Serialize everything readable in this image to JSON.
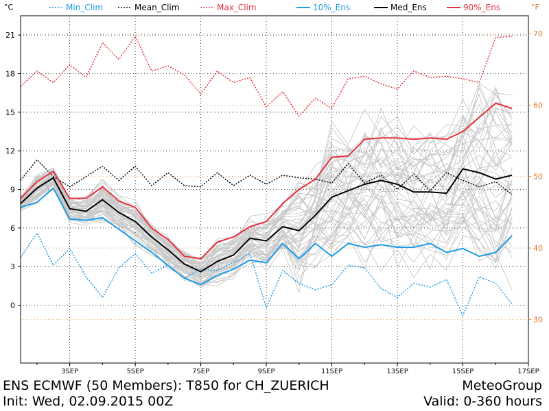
{
  "chart_data": {
    "type": "line",
    "title": "ENS ECMWF (50 Members): T850 for CH_ZUERICH",
    "ylabel_left": "°C",
    "ylabel_right": "°F",
    "ylim": [
      -4.5,
      22.5
    ],
    "y_ticks_left": [
      0,
      3,
      6,
      9,
      12,
      15,
      18,
      21
    ],
    "y_ticks_right_f": [
      30,
      40,
      50,
      60,
      70
    ],
    "xlim": [
      0,
      360
    ],
    "x_tick_labels": [
      "3SEP",
      "5SEP",
      "7SEP",
      "9SEP",
      "11SEP",
      "13SEP",
      "15SEP",
      "17SEP"
    ],
    "x_tick_hours": [
      36,
      84,
      132,
      180,
      228,
      276,
      324,
      372
    ],
    "legend": [
      {
        "key": "min_clim",
        "label": "Min_Clim",
        "color": "#1e9be6",
        "dash": "dotted"
      },
      {
        "key": "mean_clim",
        "label": "Mean_Clim",
        "color": "#000000",
        "dash": "dotted"
      },
      {
        "key": "max_clim",
        "label": "Max_Clim",
        "color": "#e6323c",
        "dash": "dotted"
      },
      {
        "key": "p10",
        "label": "10%_Ens",
        "color": "#1e9be6",
        "dash": "solid"
      },
      {
        "key": "median",
        "label": "Med_Ens",
        "color": "#000000",
        "dash": "solid"
      },
      {
        "key": "p90",
        "label": "90%_Ens",
        "color": "#e6323c",
        "dash": "solid"
      }
    ],
    "series": [
      {
        "name": "Max_Clim",
        "key": "max_clim",
        "x": [
          0,
          12,
          24,
          36,
          48,
          60,
          72,
          84,
          96,
          108,
          120,
          132,
          144,
          156,
          168,
          180,
          192,
          204,
          216,
          228,
          240,
          252,
          264,
          276,
          288,
          300,
          312,
          324,
          336,
          348,
          360
        ],
        "values": [
          17.0,
          18.2,
          17.3,
          18.7,
          17.7,
          20.4,
          19.1,
          20.9,
          18.2,
          18.6,
          17.9,
          16.4,
          18.2,
          17.3,
          17.7,
          15.4,
          16.6,
          14.7,
          16.1,
          15.3,
          17.6,
          17.8,
          17.2,
          16.8,
          18.2,
          17.7,
          17.8,
          17.6,
          17.3,
          20.8,
          20.9
        ]
      },
      {
        "name": "Mean_Clim",
        "key": "mean_clim",
        "x": [
          0,
          12,
          24,
          36,
          48,
          60,
          72,
          84,
          96,
          108,
          120,
          132,
          144,
          156,
          168,
          180,
          192,
          204,
          216,
          228,
          240,
          252,
          264,
          276,
          288,
          300,
          312,
          324,
          336,
          348,
          360
        ],
        "values": [
          9.7,
          11.3,
          10.0,
          9.2,
          10.0,
          10.8,
          9.7,
          10.8,
          9.3,
          10.3,
          9.3,
          9.2,
          10.3,
          9.3,
          10.1,
          9.4,
          10.1,
          9.9,
          9.8,
          9.5,
          11.0,
          9.5,
          10.1,
          9.0,
          10.2,
          8.9,
          10.3,
          9.7,
          9.2,
          9.6,
          8.6
        ]
      },
      {
        "name": "Min_Clim",
        "key": "min_clim",
        "x": [
          0,
          12,
          24,
          36,
          48,
          60,
          72,
          84,
          96,
          108,
          120,
          132,
          144,
          156,
          168,
          180,
          192,
          204,
          216,
          228,
          240,
          252,
          264,
          276,
          288,
          300,
          312,
          324,
          336,
          348,
          360
        ],
        "values": [
          3.7,
          5.6,
          3.1,
          4.4,
          2.2,
          0.6,
          2.9,
          4.0,
          2.5,
          3.1,
          2.1,
          2.8,
          2.7,
          3.3,
          4.0,
          -0.2,
          2.7,
          1.7,
          1.2,
          1.6,
          3.1,
          2.9,
          1.3,
          0.6,
          1.7,
          1.4,
          2.0,
          -0.8,
          2.2,
          1.7,
          0.1
        ]
      },
      {
        "name": "90%_Ens",
        "key": "p90",
        "x": [
          0,
          12,
          24,
          36,
          48,
          60,
          72,
          84,
          96,
          108,
          120,
          132,
          144,
          156,
          168,
          180,
          192,
          204,
          216,
          228,
          240,
          252,
          264,
          276,
          288,
          300,
          312,
          324,
          336,
          348,
          360
        ],
        "values": [
          8.3,
          9.6,
          10.4,
          8.3,
          8.3,
          9.2,
          8.1,
          7.6,
          6.0,
          5.1,
          3.8,
          3.6,
          4.9,
          5.3,
          6.1,
          6.5,
          7.9,
          9.0,
          9.8,
          11.5,
          11.6,
          12.9,
          13.0,
          13.0,
          12.9,
          13.0,
          12.9,
          13.5,
          14.6,
          15.7,
          15.3
        ]
      },
      {
        "name": "Med_Ens",
        "key": "median",
        "x": [
          0,
          12,
          24,
          36,
          48,
          60,
          72,
          84,
          96,
          108,
          120,
          132,
          144,
          156,
          168,
          180,
          192,
          204,
          216,
          228,
          240,
          252,
          264,
          276,
          288,
          300,
          312,
          324,
          336,
          348,
          360
        ],
        "values": [
          7.9,
          9.1,
          9.9,
          7.5,
          7.3,
          8.2,
          7.2,
          6.5,
          5.3,
          4.3,
          3.2,
          2.6,
          3.4,
          3.9,
          5.2,
          5.0,
          6.1,
          5.8,
          7.0,
          8.4,
          8.9,
          9.4,
          9.7,
          9.4,
          8.8,
          8.8,
          8.7,
          10.6,
          10.3,
          9.8,
          10.1
        ]
      },
      {
        "name": "10%_Ens",
        "key": "p10",
        "x": [
          0,
          12,
          24,
          36,
          48,
          60,
          72,
          84,
          96,
          108,
          120,
          132,
          144,
          156,
          168,
          180,
          192,
          204,
          216,
          228,
          240,
          252,
          264,
          276,
          288,
          300,
          312,
          324,
          336,
          348,
          360
        ],
        "values": [
          7.6,
          8.0,
          9.1,
          6.7,
          6.6,
          6.8,
          5.9,
          5.0,
          4.1,
          3.1,
          2.1,
          1.6,
          2.3,
          2.8,
          3.5,
          3.3,
          4.8,
          3.6,
          4.8,
          3.8,
          4.8,
          4.5,
          4.7,
          4.5,
          4.5,
          4.8,
          4.1,
          4.4,
          3.8,
          4.1,
          5.4
        ]
      }
    ],
    "members_description_count": 50,
    "footer": {
      "title": "ENS ECMWF (50 Members): T850 for CH_ZUERICH",
      "init": "Init: Wed, 02.09.2015 00Z",
      "brand": "MeteoGroup",
      "valid": "Valid: 0-360 hours"
    }
  }
}
